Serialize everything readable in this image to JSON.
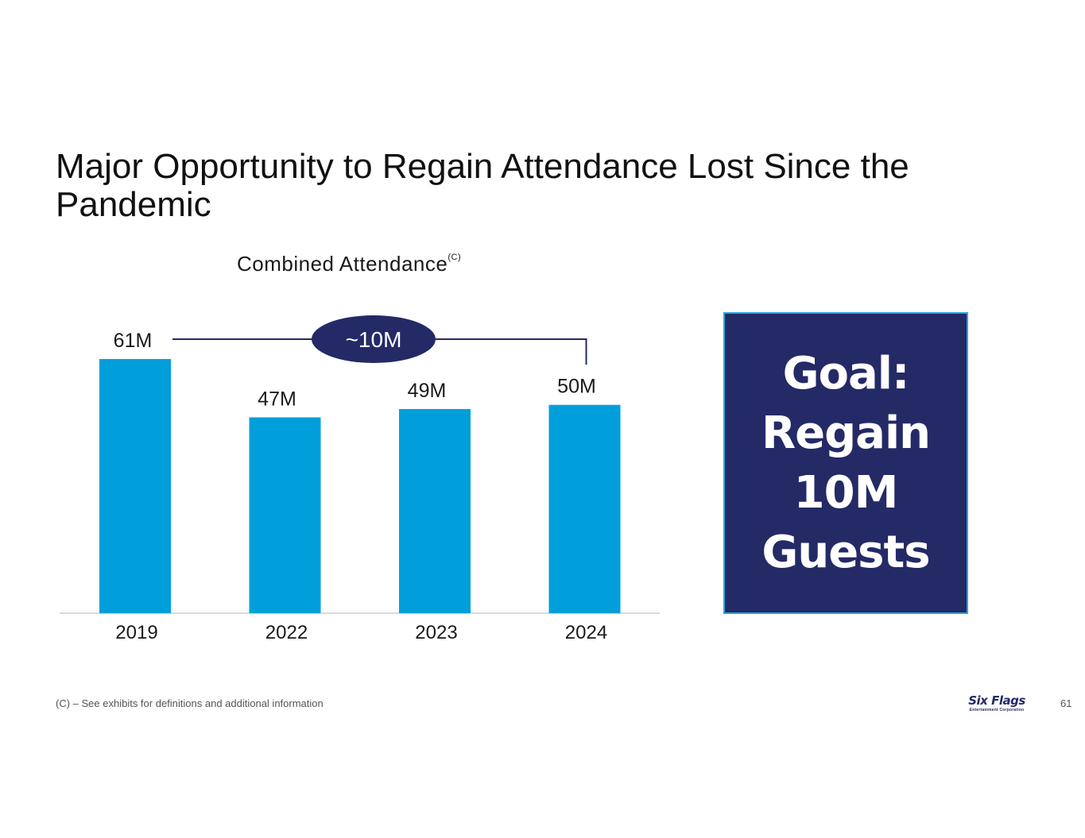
{
  "slide": {
    "title": "Major Opportunity to Regain Attendance Lost Since the Pandemic",
    "chart_title": "Combined Attendance",
    "chart_title_superscript": "(C)",
    "goal": [
      "Goal:",
      "Regain",
      "10M",
      "Guests"
    ],
    "footnote": "(C) – See exhibits for definitions and additional information",
    "logo_main": "Six Flags",
    "logo_sub": "Entertainment Corporation",
    "page_number": "61"
  },
  "colors": {
    "bar": "#009fdb",
    "navy": "#242a66",
    "axis": "#d9d9d9"
  },
  "chart_data": {
    "type": "bar",
    "title": "Combined Attendance",
    "categories": [
      "2019",
      "2022",
      "2023",
      "2024"
    ],
    "values": [
      61,
      47,
      49,
      50
    ],
    "data_labels": [
      "61M",
      "47M",
      "49M",
      "50M"
    ],
    "unit": "M",
    "ylim": [
      0,
      61
    ],
    "grid": false,
    "annotation": {
      "label": "~10M",
      "from_category": "2019",
      "to_category": "2024"
    }
  }
}
